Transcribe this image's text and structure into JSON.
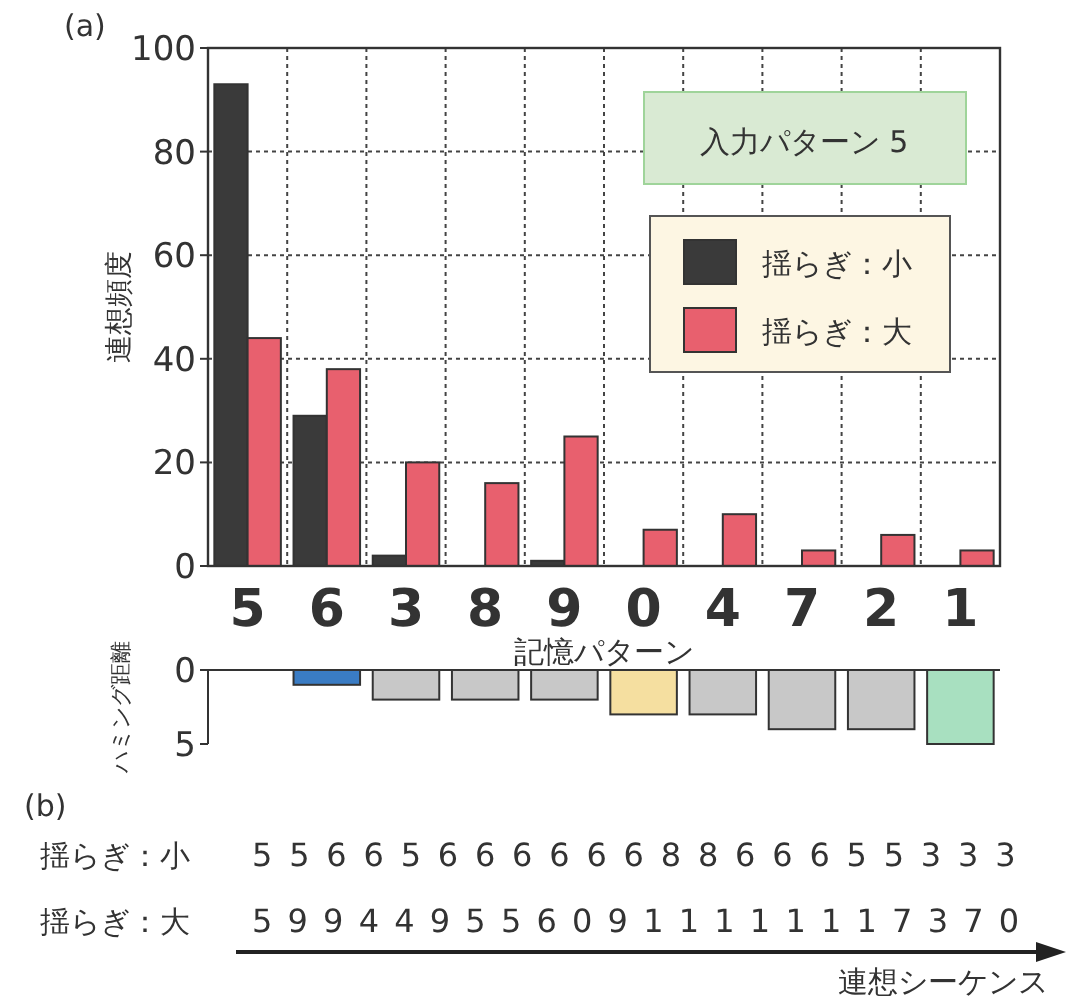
{
  "chart_data": [
    {
      "type": "bar",
      "title": "(a)",
      "xlabel": "記憶パターン",
      "ylabel": "連想頻度",
      "categories": [
        "5",
        "6",
        "3",
        "8",
        "9",
        "0",
        "4",
        "7",
        "2",
        "1"
      ],
      "series": [
        {
          "name": "揺らぎ：小",
          "color": "#3a3a3a",
          "values": [
            93,
            29,
            2,
            0,
            1,
            0,
            0,
            0,
            0,
            0
          ]
        },
        {
          "name": "揺らぎ：大",
          "color": "#e8606e",
          "values": [
            44,
            38,
            20,
            16,
            25,
            7,
            10,
            3,
            6,
            3
          ]
        }
      ],
      "ylim": [
        0,
        100
      ],
      "yticks": [
        0,
        20,
        40,
        60,
        80,
        100
      ],
      "grid": true,
      "legend": "top right",
      "annotations": [
        "入力パターン 5"
      ]
    },
    {
      "type": "bar",
      "ylabel": "ハミング距離",
      "categories": [
        null,
        null,
        null,
        null,
        null,
        null,
        null,
        null,
        null,
        null
      ],
      "values": [
        0,
        1,
        2,
        2,
        2,
        3,
        3,
        4,
        4,
        5
      ],
      "colors": [
        "#c8c8c8",
        "#3a7cc4",
        "#c8c8c8",
        "#c8c8c8",
        "#c8c8c8",
        "#f5dfa0",
        "#c8c8c8",
        "#c8c8c8",
        "#c8c8c8",
        "#a8e0c0"
      ],
      "ylim": [
        5,
        0
      ],
      "yticks": [
        0,
        5
      ],
      "tick_labels": "y"
    },
    {
      "type": "other",
      "title": "(b)",
      "annotations": [
        "揺らぎ：小",
        "556656666668866655333",
        "揺らぎ：大",
        "5994495560911111117370",
        "連想シーケンス"
      ]
    }
  ]
}
